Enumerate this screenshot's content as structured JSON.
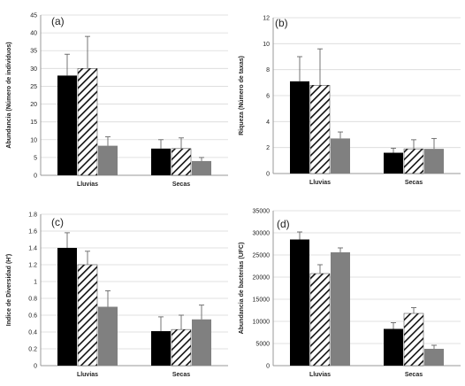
{
  "chart_data": [
    {
      "type": "bar",
      "panel_label": "(a)",
      "ylabel": "Abundancia (Número de individuos)",
      "categories": [
        "Lluvias",
        "Secas"
      ],
      "ylim": [
        0,
        45
      ],
      "yticks": [
        "0",
        "5",
        "10",
        "15",
        "20",
        "25",
        "30",
        "35",
        "40",
        "45"
      ],
      "series": [
        {
          "fill": "black",
          "values": [
            28,
            7.5
          ],
          "errors": [
            6,
            2.5
          ]
        },
        {
          "fill": "hatch",
          "values": [
            30,
            7.5
          ],
          "errors": [
            9,
            3
          ]
        },
        {
          "fill": "gray",
          "values": [
            8.3,
            4
          ],
          "errors": [
            2.5,
            1
          ]
        }
      ]
    },
    {
      "type": "bar",
      "panel_label": "(b)",
      "ylabel": "Riqueza (Número de taxas)",
      "categories": [
        "Lluvias",
        "Secas"
      ],
      "ylim": [
        0,
        12
      ],
      "yticks": [
        "0",
        "2",
        "4",
        "6",
        "8",
        "10",
        "12"
      ],
      "series": [
        {
          "fill": "black",
          "values": [
            7.1,
            1.6
          ],
          "errors": [
            1.9,
            0.35
          ]
        },
        {
          "fill": "hatch",
          "values": [
            6.8,
            1.9
          ],
          "errors": [
            2.8,
            0.7
          ]
        },
        {
          "fill": "gray",
          "values": [
            2.7,
            1.9
          ],
          "errors": [
            0.5,
            0.8
          ]
        }
      ]
    },
    {
      "type": "bar",
      "panel_label": "(c)",
      "ylabel": "Indice de Diversidad (H')",
      "categories": [
        "Lluvias",
        "Secas"
      ],
      "ylim": [
        0,
        1.8
      ],
      "yticks": [
        "0",
        "0.2",
        "0.4",
        "0.6",
        "0.8",
        "1",
        "1.2",
        "1.4",
        "1.6",
        "1.8"
      ],
      "series": [
        {
          "fill": "black",
          "values": [
            1.4,
            0.41
          ],
          "errors": [
            0.18,
            0.17
          ]
        },
        {
          "fill": "hatch",
          "values": [
            1.2,
            0.43
          ],
          "errors": [
            0.16,
            0.17
          ]
        },
        {
          "fill": "gray",
          "values": [
            0.7,
            0.55
          ],
          "errors": [
            0.19,
            0.17
          ]
        }
      ]
    },
    {
      "type": "bar",
      "panel_label": "(d)",
      "ylabel": "Abundancia de bacterias (UFC)",
      "categories": [
        "Lluvias",
        "Secas"
      ],
      "ylim": [
        0,
        35000
      ],
      "yticks": [
        "0",
        "5000",
        "10000",
        "15000",
        "20000",
        "25000",
        "30000",
        "35000"
      ],
      "series": [
        {
          "fill": "black",
          "values": [
            28500,
            8300
          ],
          "errors": [
            1700,
            1400
          ]
        },
        {
          "fill": "hatch",
          "values": [
            20800,
            11800
          ],
          "errors": [
            2000,
            1300
          ]
        },
        {
          "fill": "gray",
          "values": [
            25600,
            3800
          ],
          "errors": [
            1000,
            800
          ]
        }
      ]
    }
  ],
  "colors": {
    "black": "#000000",
    "gray": "#808080",
    "hatch_line": "#111111",
    "axis": "#9a9a9a",
    "grid": "#d9d9d9"
  },
  "grid": true
}
